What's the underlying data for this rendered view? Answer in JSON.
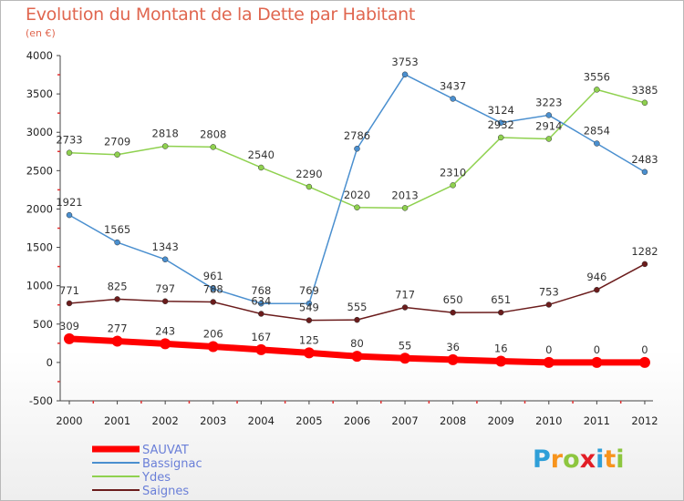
{
  "title": "Evolution du Montant de la Dette par Habitant",
  "subtitle": "(en €)",
  "brand": {
    "letters": [
      "P",
      "r",
      "o",
      "x",
      "i",
      "t",
      "i"
    ],
    "colors": [
      "#2f9fd8",
      "#f7941d",
      "#8dc63f",
      "#e21e26",
      "#2f9fd8",
      "#f7941d",
      "#8dc63f"
    ]
  },
  "chart_data": {
    "type": "line",
    "title": "Evolution du Montant de la Dette par Habitant",
    "ylabel": "(en €)",
    "xlabel": "",
    "x": [
      "2000",
      "2001",
      "2002",
      "2003",
      "2004",
      "2005",
      "2006",
      "2007",
      "2008",
      "2009",
      "2010",
      "2011",
      "2012"
    ],
    "ylim": [
      -500,
      4000
    ],
    "yticks": [
      "-500",
      "0",
      "500",
      "1000",
      "1500",
      "2000",
      "2500",
      "3000",
      "3500",
      "4000"
    ],
    "grid": false,
    "legend_position": "bottom-left",
    "series": [
      {
        "name": "SAUVAT",
        "color": "#ff0000",
        "values": [
          309,
          277,
          243,
          206,
          167,
          125,
          80,
          55,
          36,
          16,
          0,
          0,
          0
        ]
      },
      {
        "name": "Bassignac",
        "color": "#4a8fcf",
        "values": [
          1921,
          1565,
          1343,
          961,
          768,
          769,
          2786,
          3753,
          3437,
          3124,
          3223,
          2854,
          2483
        ]
      },
      {
        "name": "Ydes",
        "color": "#8fd14f",
        "values": [
          2733,
          2709,
          2818,
          2808,
          2540,
          2290,
          2020,
          2013,
          2310,
          2932,
          2914,
          3556,
          3385
        ]
      },
      {
        "name": "Saignes",
        "color": "#6b1c1c",
        "values": [
          771,
          825,
          797,
          788,
          634,
          549,
          555,
          717,
          650,
          651,
          753,
          946,
          1282
        ]
      }
    ]
  }
}
